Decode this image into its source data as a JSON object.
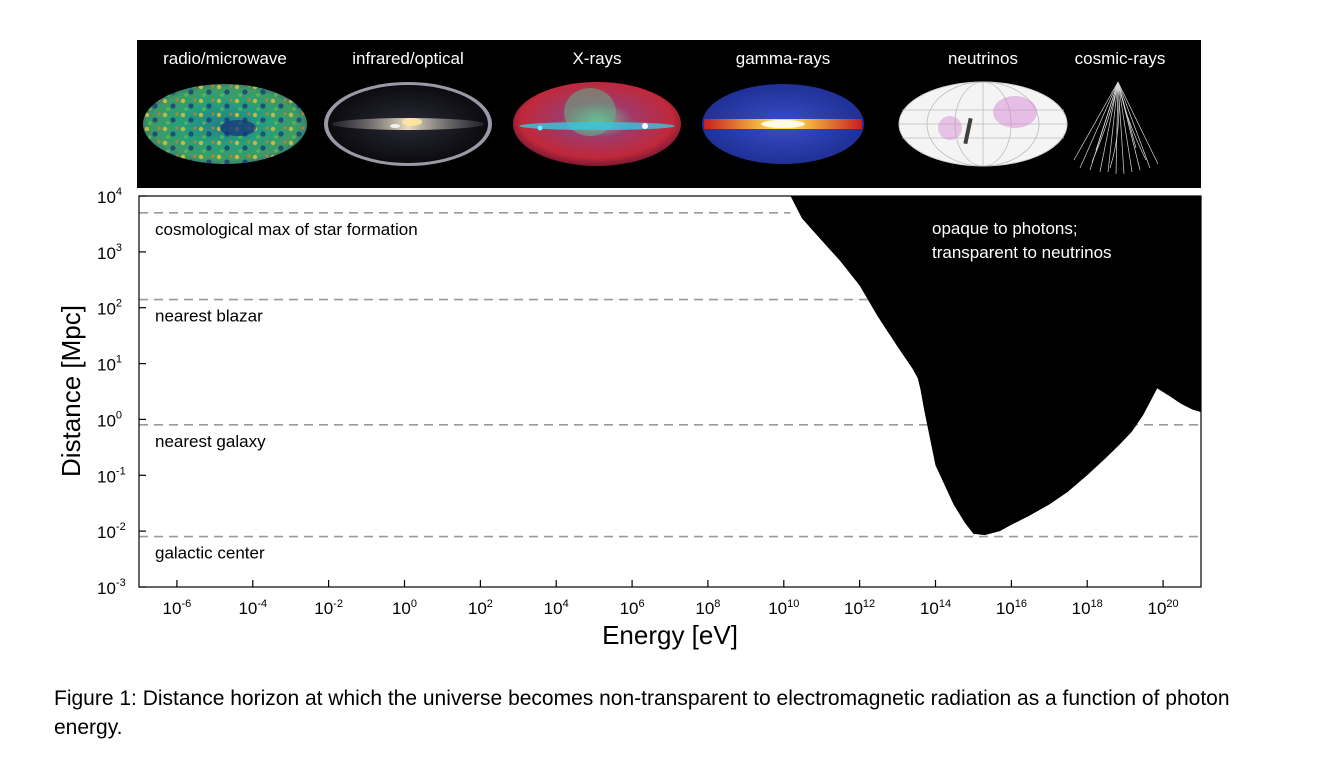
{
  "chart_data": {
    "type": "area",
    "xlabel": "Energy [eV]",
    "ylabel": "Distance [Mpc]",
    "x_scale": "log",
    "y_scale": "log",
    "xlim": [
      1e-07,
      1e+21
    ],
    "ylim": [
      0.001,
      10000
    ],
    "x_ticks": [
      {
        "base": "10",
        "exp": "-6",
        "value": 1e-06
      },
      {
        "base": "10",
        "exp": "-4",
        "value": 0.0001
      },
      {
        "base": "10",
        "exp": "-2",
        "value": 0.01
      },
      {
        "base": "10",
        "exp": "0",
        "value": 1
      },
      {
        "base": "10",
        "exp": "2",
        "value": 100.0
      },
      {
        "base": "10",
        "exp": "4",
        "value": 10000.0
      },
      {
        "base": "10",
        "exp": "6",
        "value": 1000000.0
      },
      {
        "base": "10",
        "exp": "8",
        "value": 100000000.0
      },
      {
        "base": "10",
        "exp": "10",
        "value": 10000000000.0
      },
      {
        "base": "10",
        "exp": "12",
        "value": 1000000000000.0
      },
      {
        "base": "10",
        "exp": "14",
        "value": 100000000000000.0
      },
      {
        "base": "10",
        "exp": "16",
        "value": 1e+16
      },
      {
        "base": "10",
        "exp": "18",
        "value": 1e+18
      },
      {
        "base": "10",
        "exp": "20",
        "value": 1e+20
      }
    ],
    "y_ticks": [
      {
        "base": "10",
        "exp": "-3",
        "value": 0.001
      },
      {
        "base": "10",
        "exp": "-2",
        "value": 0.01
      },
      {
        "base": "10",
        "exp": "-1",
        "value": 0.1
      },
      {
        "base": "10",
        "exp": "0",
        "value": 1
      },
      {
        "base": "10",
        "exp": "1",
        "value": 10
      },
      {
        "base": "10",
        "exp": "2",
        "value": 100
      },
      {
        "base": "10",
        "exp": "3",
        "value": 1000
      },
      {
        "base": "10",
        "exp": "4",
        "value": 10000
      }
    ],
    "horizon_curve": {
      "fill": "#000000",
      "x": [
        15000000000.0,
        30000000000.0,
        100000000000.0,
        300000000000.0,
        1000000000000.0,
        3000000000000.0,
        10000000000000.0,
        25000000000000.0,
        34000000000000.0,
        40000000000000.0,
        50000000000000.0,
        100000000000000.0,
        300000000000000.0,
        600000000000000.0,
        1000000000000000.0,
        2000000000000000.0,
        5000000000000000.0,
        1e+16,
        3e+16,
        1e+17,
        3e+17,
        1e+18,
        3e+18,
        7e+18,
        1.5e+19,
        3e+19,
        7e+19,
        1.5e+20,
        3e+20,
        6e+20,
        1e+21
      ],
      "y": [
        10000,
        4000,
        1600,
        700,
        250,
        70,
        20,
        8,
        5.5,
        3.5,
        1.5,
        0.15,
        0.03,
        0.014,
        0.009,
        0.0085,
        0.01,
        0.013,
        0.019,
        0.03,
        0.05,
        0.1,
        0.2,
        0.35,
        0.6,
        1.2,
        3.6,
        2.6,
        1.9,
        1.5,
        1.35
      ],
      "label_lines": [
        "opaque to photons;",
        "transparent to neutrinos"
      ]
    },
    "reference_lines": [
      {
        "y": 5000,
        "label": "cosmological max of star formation",
        "x_end": 15000000000.0
      },
      {
        "y": 140,
        "label": "nearest blazar",
        "x_end": 1600000000000.0
      },
      {
        "y": 0.8,
        "label": "nearest galaxy",
        "x_end": 1e+21
      },
      {
        "y": 0.008,
        "label": "galactic center",
        "x_end": 1e+21
      }
    ],
    "messenger_bands": [
      {
        "label": "radio/microwave",
        "icon": "cmb-sky-map"
      },
      {
        "label": "infrared/optical",
        "icon": "milky-way-sky-map"
      },
      {
        "label": "X-rays",
        "icon": "xray-sky-map"
      },
      {
        "label": "gamma-rays",
        "icon": "gamma-ray-sky-map"
      },
      {
        "label": "neutrinos",
        "icon": "neutrino-sky-map"
      },
      {
        "label": "cosmic-rays",
        "icon": "cosmic-ray-shower"
      }
    ]
  },
  "caption": "Figure 1: Distance horizon at which the universe becomes non-transparent to electromagnetic radiation as a function of photon energy."
}
